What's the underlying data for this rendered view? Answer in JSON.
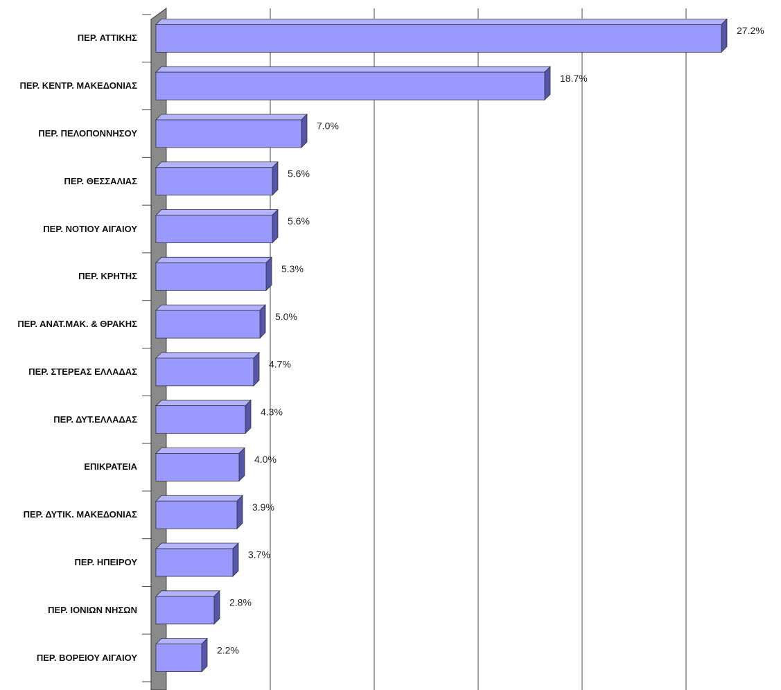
{
  "chart_data": {
    "type": "bar",
    "orientation": "horizontal",
    "categories": [
      "ΠΕΡ. ΑΤΤΙΚΗΣ",
      "ΠΕΡ. ΚΕΝΤΡ. ΜΑΚΕΔΟΝΙΑΣ",
      "ΠΕΡ. ΠΕΛΟΠΟΝΝΗΣΟΥ",
      "ΠΕΡ. ΘΕΣΣΑΛΙΑΣ",
      "ΠΕΡ. ΝΟΤΙΟΥ ΑΙΓΑΙΟΥ",
      "ΠΕΡ. ΚΡΗΤΗΣ",
      "ΠΕΡ. ΑΝΑΤ.ΜΑΚ. & ΘΡΑΚΗΣ",
      "ΠΕΡ. ΣΤΕΡΕΑΣ ΕΛΛΑΔΑΣ",
      "ΠΕΡ. ΔΥΤ.ΕΛΛΑΔΑΣ",
      "ΕΠΙΚΡΑΤΕΙΑ",
      "ΠΕΡ. ΔΥΤΙΚ. ΜΑΚΕΔΟΝΙΑΣ",
      "ΠΕΡ. ΗΠΕΙΡΟΥ",
      "ΠΕΡ. ΙΟΝΙΩΝ ΝΗΣΩΝ",
      "ΠΕΡ. ΒΟΡΕΙΟΥ ΑΙΓΑΙΟΥ"
    ],
    "values": [
      27.2,
      18.7,
      7.0,
      5.6,
      5.6,
      5.3,
      5.0,
      4.7,
      4.3,
      4.0,
      3.9,
      3.7,
      2.8,
      2.2
    ],
    "value_labels": [
      "27.2%",
      "18.7%",
      "7.0%",
      "5.6%",
      "5.6%",
      "5.3%",
      "5.0%",
      "4.7%",
      "4.3%",
      "4.0%",
      "3.9%",
      "3.7%",
      "2.8%",
      "2.2%"
    ],
    "color": "#9999ff",
    "xlim": [
      0,
      29.6
    ],
    "xticks": [
      0,
      5,
      10,
      15,
      20,
      25
    ],
    "grid": true
  }
}
